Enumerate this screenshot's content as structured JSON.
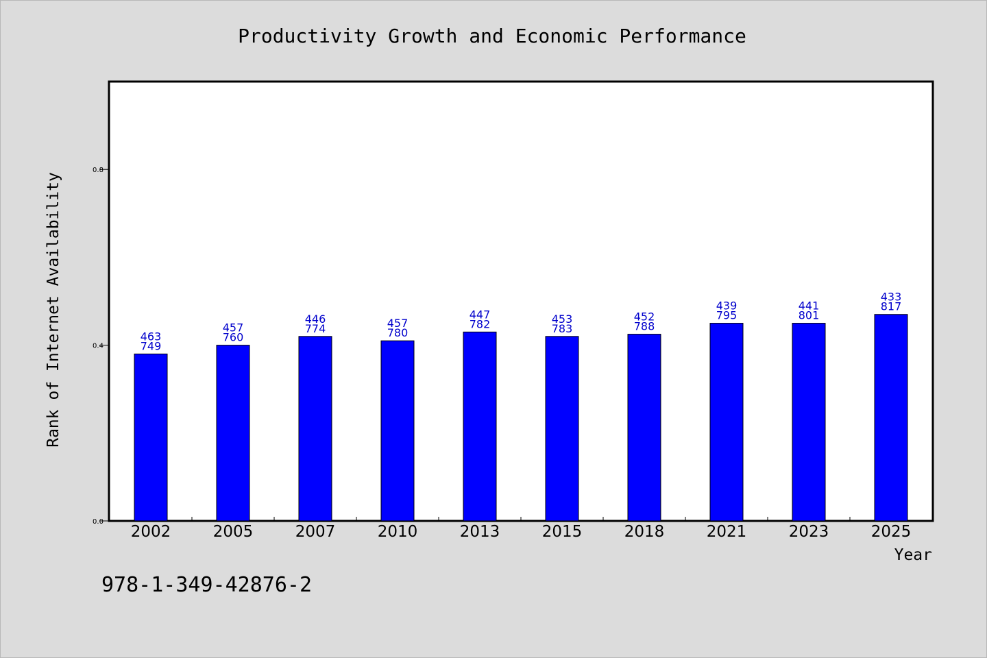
{
  "chart_data": {
    "type": "bar",
    "title": "Productivity Growth and Economic Performance",
    "xlabel": "Year",
    "ylabel": "Rank of Internet Availability",
    "categories": [
      "2002",
      "2005",
      "2007",
      "2010",
      "2013",
      "2015",
      "2018",
      "2021",
      "2023",
      "2025"
    ],
    "values": [
      0.38,
      0.4,
      0.42,
      0.41,
      0.43,
      0.42,
      0.425,
      0.45,
      0.45,
      0.47
    ],
    "labels_top": [
      "463",
      "457",
      "446",
      "457",
      "447",
      "453",
      "452",
      "439",
      "441",
      "433"
    ],
    "labels_bottom": [
      "749",
      "760",
      "774",
      "780",
      "782",
      "783",
      "788",
      "795",
      "801",
      "817"
    ],
    "ylim": [
      0,
      1.0
    ],
    "yticks": [
      0.0,
      0.4,
      0.8
    ],
    "ytick_labels": [
      "0.0",
      "0.4",
      "0.8"
    ],
    "bar_color": "#0000ff",
    "label_color": "#0000cc",
    "grid": false,
    "legend": "none"
  },
  "footer": {
    "code": "978-1-349-42876-2"
  }
}
